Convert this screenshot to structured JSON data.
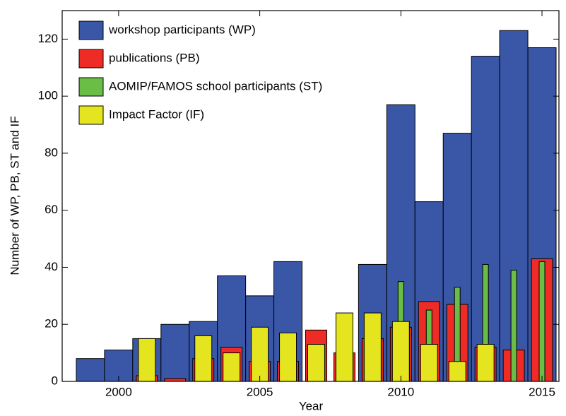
{
  "chart_data": {
    "type": "bar",
    "x_label": "Year",
    "y_label": "Number of WP, PB, ST and IF",
    "x": [
      1999,
      2000,
      2001,
      2002,
      2003,
      2004,
      2005,
      2006,
      2007,
      2008,
      2009,
      2010,
      2011,
      2012,
      2013,
      2014,
      2015
    ],
    "series": [
      {
        "name": "workshop participants (WP)",
        "color": "#3a56a6",
        "values": [
          8,
          11,
          15,
          20,
          21,
          37,
          30,
          42,
          null,
          null,
          41,
          97,
          63,
          87,
          114,
          123,
          117
        ]
      },
      {
        "name": "publications (PB)",
        "color": "#ee2b24",
        "values": [
          null,
          null,
          2,
          1,
          8,
          12,
          7,
          7,
          18,
          10,
          15,
          19,
          28,
          27,
          12,
          11,
          43
        ]
      },
      {
        "name": "AOMIP/FAMOS school participants (ST)",
        "color": "#6abd45",
        "values": [
          null,
          null,
          null,
          null,
          null,
          null,
          null,
          null,
          null,
          null,
          14,
          35,
          25,
          33,
          41,
          39,
          42
        ]
      },
      {
        "name": "Impact Factor (IF)",
        "color": "#e4e41f",
        "values": [
          null,
          null,
          15,
          null,
          16,
          10,
          19,
          17,
          13,
          24,
          24,
          21,
          13,
          7,
          13,
          null,
          null
        ]
      }
    ],
    "xlim": [
      1998,
      2015.6
    ],
    "ylim": [
      0,
      130
    ],
    "xticks": [
      2000,
      2005,
      2010,
      2015
    ],
    "yticks": [
      0,
      20,
      40,
      60,
      80,
      100,
      120
    ],
    "legend": "upper-left"
  }
}
